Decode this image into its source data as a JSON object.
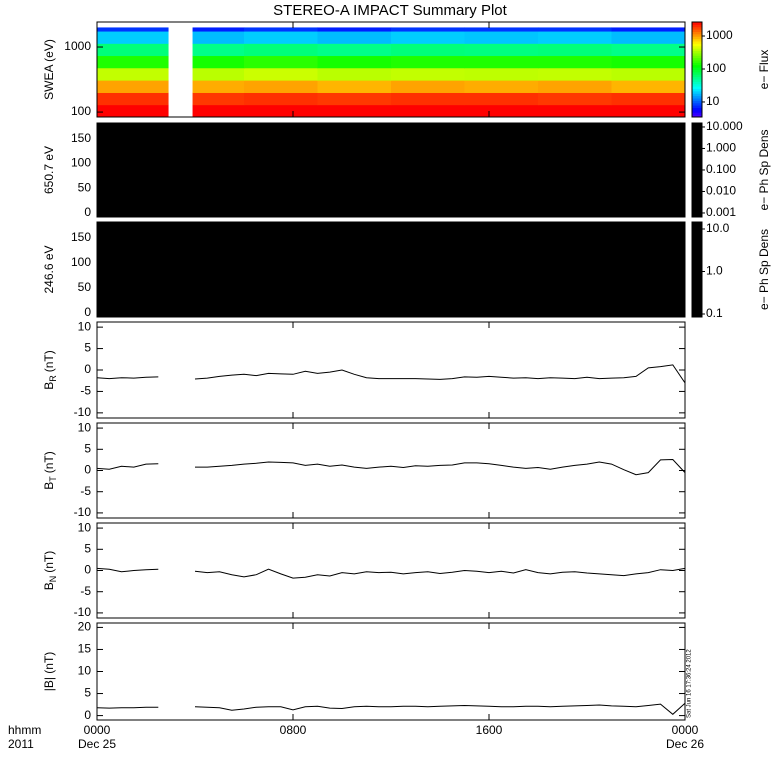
{
  "title": "STEREO-A IMPACT Summary Plot",
  "stamp": "Sat Jun 16 17:36:24 2012",
  "x_axis": {
    "xlim": [
      0,
      24
    ],
    "xticks": [
      {
        "value": 0,
        "label": "0000"
      },
      {
        "value": 8,
        "label": "0800"
      },
      {
        "value": 16,
        "label": "1600"
      },
      {
        "value": 24,
        "label": "0000"
      }
    ],
    "first_date": "Dec 25",
    "last_date": "Dec 26",
    "label": "hhmm",
    "year": "2011"
  },
  "chart_data": [
    {
      "type": "heatmap",
      "ylabel": "SWEA (eV)",
      "ylog": true,
      "ylim": [
        84,
        2425
      ],
      "yticks": [
        100,
        1000
      ],
      "x_edges": [
        0,
        2.9,
        3.9,
        6,
        9,
        12,
        15,
        18,
        21,
        24
      ],
      "y_edges": [
        84,
        130,
        200,
        310,
        480,
        740,
        1140,
        1760,
        2000
      ],
      "z": [
        [
          3000,
          null,
          2900,
          3000,
          2800,
          3000,
          2900,
          3000,
          2800
        ],
        [
          2000,
          null,
          1900,
          2000,
          1900,
          2000,
          2000,
          1900,
          2000
        ],
        [
          1000,
          null,
          950,
          1000,
          900,
          1000,
          950,
          1000,
          900
        ],
        [
          400,
          null,
          380,
          420,
          380,
          400,
          390,
          400,
          380
        ],
        [
          150,
          null,
          140,
          160,
          140,
          150,
          150,
          150,
          140
        ],
        [
          60,
          null,
          55,
          60,
          55,
          60,
          58,
          60,
          55
        ],
        [
          20,
          null,
          18,
          20,
          18,
          20,
          19,
          20,
          18
        ],
        [
          8,
          null,
          7,
          8,
          7,
          8,
          8,
          8,
          7
        ]
      ],
      "colorbar": {
        "colormap": "rainbow",
        "zlim": [
          3.5,
          2660
        ],
        "ticks": [
          10,
          100,
          1000
        ],
        "label": "e− Flux"
      }
    },
    {
      "type": "pitch-angle",
      "ylabel": "650.7 eV",
      "ylim": [
        -8,
        182
      ],
      "yticks": [
        0,
        50,
        100,
        150
      ],
      "color": "#000000",
      "colorbar": {
        "color": "#000000",
        "zlim": [
          0.00065,
          15.3
        ],
        "ticks": [
          {
            "value": 10,
            "label": "10.000"
          },
          {
            "value": 1,
            "label": "1.000"
          },
          {
            "value": 0.1,
            "label": "0.100"
          },
          {
            "value": 0.01,
            "label": "0.010"
          },
          0.001
        ],
        "label": "e− Ph Sp Dens"
      }
    },
    {
      "type": "pitch-angle",
      "ylabel": "246.6 eV",
      "ylim": [
        -8,
        182
      ],
      "yticks": [
        0,
        50,
        100,
        150
      ],
      "color": "#000000",
      "colorbar": {
        "color": "#000000",
        "zlim": [
          0.085,
          14.6
        ],
        "ticks": [
          {
            "value": 10,
            "label": "10.0"
          },
          {
            "value": 1,
            "label": "1.0"
          },
          0.1
        ],
        "label": "e− Ph Sp Dens"
      }
    },
    {
      "type": "line",
      "ylabel": "B",
      "ylabel_sub": "R",
      "ylabel_unit": "(nT)",
      "ylim": [
        -11.2,
        11.2
      ],
      "yticks": [
        -10,
        -5,
        0,
        5,
        10
      ],
      "color": "#000000",
      "x": [
        0,
        0.5,
        1,
        1.5,
        2,
        2.5,
        3,
        3.5,
        4,
        4.5,
        5,
        5.5,
        6,
        6.5,
        7,
        7.5,
        8,
        8.5,
        9,
        9.5,
        10,
        10.5,
        11,
        11.5,
        12,
        12.5,
        13,
        13.5,
        14,
        14.5,
        15,
        15.5,
        16,
        16.5,
        17,
        17.5,
        18,
        18.5,
        19,
        19.5,
        20,
        20.5,
        21,
        21.5,
        22,
        22.5,
        23,
        23.5,
        24
      ],
      "values": [
        -1.8,
        -2,
        -1.8,
        -1.9,
        -1.7,
        -1.6,
        null,
        null,
        -2.1,
        -1.9,
        -1.5,
        -1.2,
        -1.0,
        -1.3,
        -0.8,
        -0.9,
        -1.0,
        -0.3,
        -0.8,
        -0.5,
        0.0,
        -1.0,
        -1.8,
        -2.0,
        -2.0,
        -2.0,
        -2.0,
        -2.1,
        -2.2,
        -2.0,
        -1.6,
        -1.7,
        -1.5,
        -1.7,
        -1.9,
        -1.8,
        -2.0,
        -1.8,
        -1.9,
        -2.0,
        -1.7,
        -2.0,
        -1.9,
        -1.8,
        -1.5,
        0.5,
        0.8,
        1.2,
        -3.0
      ]
    },
    {
      "type": "line",
      "ylabel": "B",
      "ylabel_sub": "T",
      "ylabel_unit": "(nT)",
      "ylim": [
        -11.2,
        11.2
      ],
      "yticks": [
        -10,
        -5,
        0,
        5,
        10
      ],
      "color": "#000000",
      "x": [
        0,
        0.5,
        1,
        1.5,
        2,
        2.5,
        3,
        3.5,
        4,
        4.5,
        5,
        5.5,
        6,
        6.5,
        7,
        7.5,
        8,
        8.5,
        9,
        9.5,
        10,
        10.5,
        11,
        11.5,
        12,
        12.5,
        13,
        13.5,
        14,
        14.5,
        15,
        15.5,
        16,
        16.5,
        17,
        17.5,
        18,
        18.5,
        19,
        19.5,
        20,
        20.5,
        21,
        21.5,
        22,
        22.5,
        23,
        23.5,
        24
      ],
      "values": [
        0.5,
        0.3,
        1.0,
        0.8,
        1.5,
        1.6,
        null,
        null,
        0.8,
        0.8,
        1.0,
        1.2,
        1.5,
        1.7,
        2.0,
        1.9,
        1.8,
        1.2,
        1.5,
        1.0,
        1.3,
        0.8,
        0.5,
        0.8,
        1.0,
        0.7,
        1.1,
        1.0,
        1.2,
        1.3,
        1.8,
        1.8,
        1.6,
        1.2,
        0.8,
        0.5,
        0.7,
        0.3,
        0.8,
        1.2,
        1.5,
        2.0,
        1.5,
        0.2,
        -1.0,
        -0.5,
        2.5,
        2.6,
        -0.5
      ]
    },
    {
      "type": "line",
      "ylabel": "B",
      "ylabel_sub": "N",
      "ylabel_unit": "(nT)",
      "ylim": [
        -11.2,
        11.2
      ],
      "yticks": [
        -10,
        -5,
        0,
        5,
        10
      ],
      "color": "#000000",
      "x": [
        0,
        0.5,
        1,
        1.5,
        2,
        2.5,
        3,
        3.5,
        4,
        4.5,
        5,
        5.5,
        6,
        6.5,
        7,
        7.5,
        8,
        8.5,
        9,
        9.5,
        10,
        10.5,
        11,
        11.5,
        12,
        12.5,
        13,
        13.5,
        14,
        14.5,
        15,
        15.5,
        16,
        16.5,
        17,
        17.5,
        18,
        18.5,
        19,
        19.5,
        20,
        20.5,
        21,
        21.5,
        22,
        22.5,
        23,
        23.5,
        24
      ],
      "values": [
        0.5,
        0.3,
        -0.3,
        0.0,
        0.2,
        0.3,
        null,
        null,
        -0.2,
        -0.5,
        -0.3,
        -1.0,
        -1.5,
        -1.0,
        0.3,
        -0.8,
        -1.8,
        -1.6,
        -1.0,
        -1.3,
        -0.5,
        -0.8,
        -0.3,
        -0.5,
        -0.4,
        -0.8,
        -0.5,
        -0.3,
        -0.7,
        -0.4,
        0.0,
        -0.2,
        -0.5,
        -0.2,
        -0.6,
        0.2,
        -0.5,
        -0.8,
        -0.4,
        -0.3,
        -0.6,
        -0.8,
        -1.0,
        -1.2,
        -0.8,
        -0.5,
        0.2,
        0.0,
        0.5
      ]
    },
    {
      "type": "line",
      "ylabel": "|B| (nT)",
      "ylim": [
        -1,
        21
      ],
      "yticks": [
        0,
        5,
        10,
        15,
        20
      ],
      "color": "#000000",
      "x": [
        0,
        0.5,
        1,
        1.5,
        2,
        2.5,
        3,
        3.5,
        4,
        4.5,
        5,
        5.5,
        6,
        6.5,
        7,
        7.5,
        8,
        8.5,
        9,
        9.5,
        10,
        10.5,
        11,
        11.5,
        12,
        12.5,
        13,
        13.5,
        14,
        14.5,
        15,
        15.5,
        16,
        16.5,
        17,
        17.5,
        18,
        18.5,
        19,
        19.5,
        20,
        20.5,
        21,
        21.5,
        22,
        22.5,
        23,
        23.5,
        24
      ],
      "values": [
        1.8,
        1.7,
        1.8,
        1.8,
        1.9,
        1.9,
        null,
        null,
        2.0,
        1.9,
        1.8,
        1.2,
        1.5,
        1.9,
        2.0,
        2.0,
        1.3,
        2.0,
        2.1,
        1.7,
        1.6,
        2.0,
        2.1,
        2.0,
        2.0,
        2.1,
        2.1,
        2.0,
        2.1,
        2.2,
        2.3,
        2.2,
        2.1,
        2.0,
        2.0,
        2.1,
        2.1,
        2.0,
        2.1,
        2.2,
        2.3,
        2.4,
        2.2,
        2.1,
        2.0,
        2.3,
        2.6,
        0.3,
        2.8
      ]
    }
  ]
}
